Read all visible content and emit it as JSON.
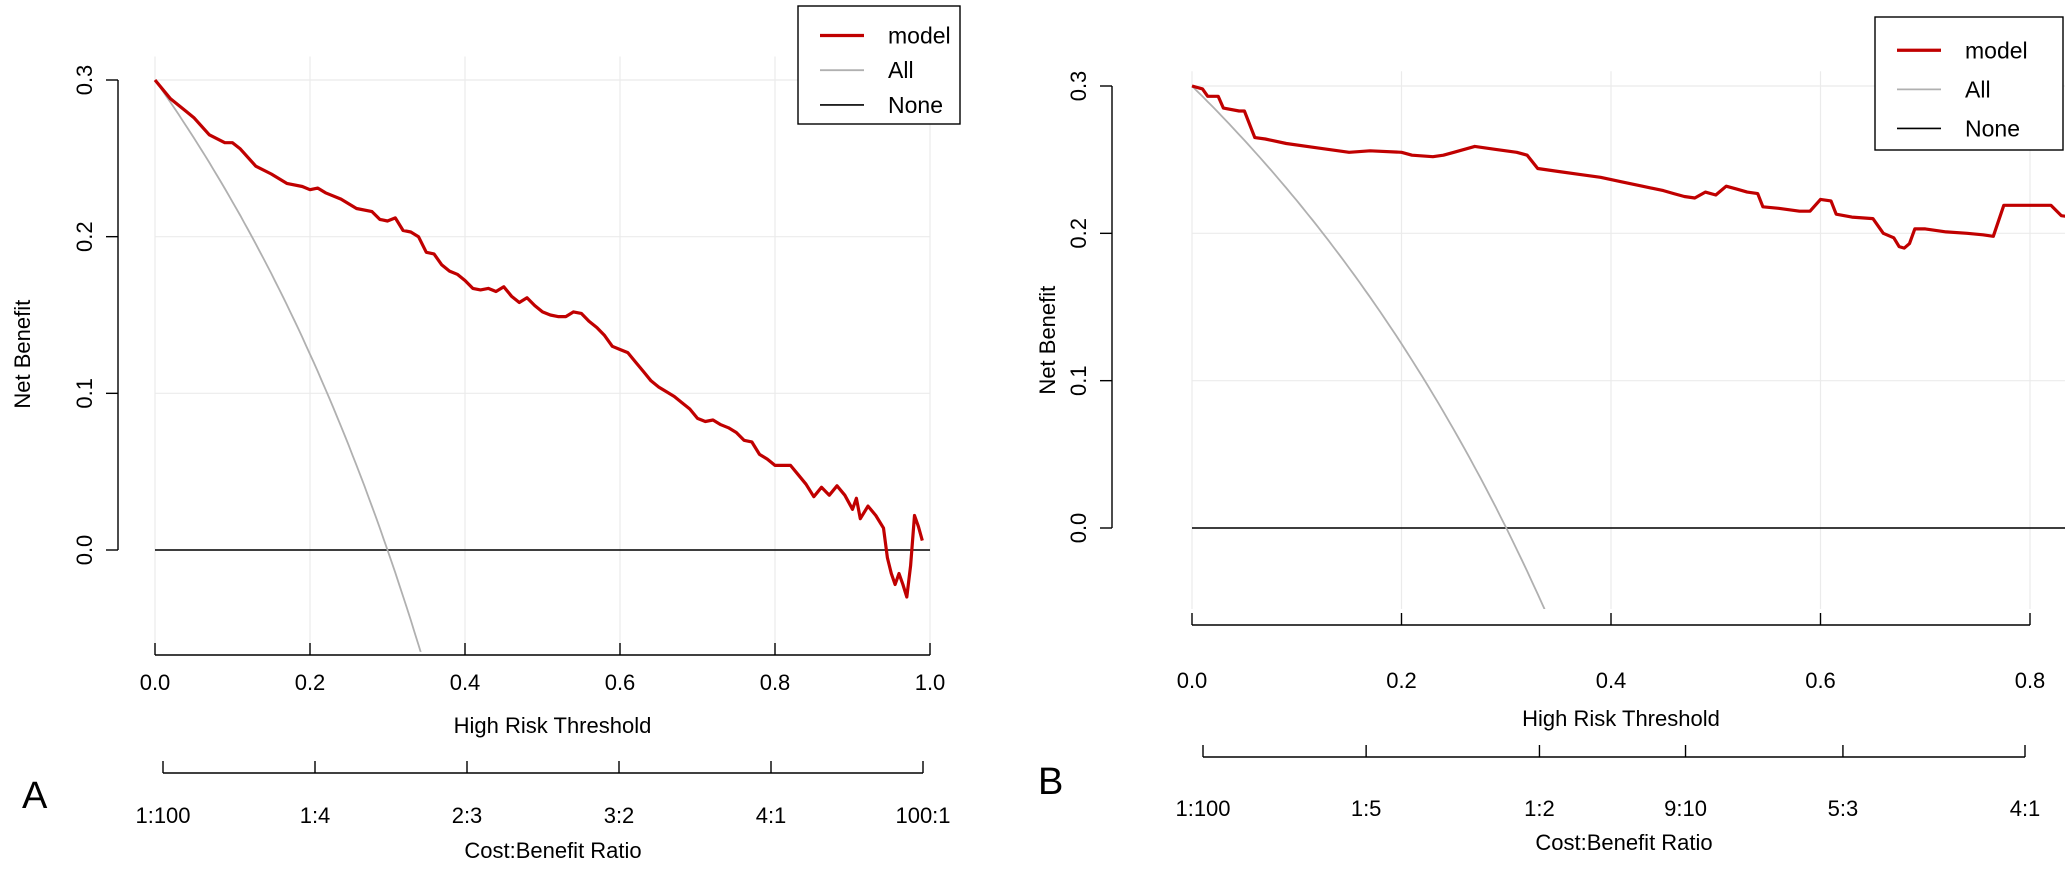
{
  "chart_data": [
    {
      "panel": "A",
      "type": "line",
      "xlabel": "High Risk Threshold",
      "ylabel": "Net Benefit",
      "xlim": [
        0,
        1.0
      ],
      "ylim": [
        -0.065,
        0.315
      ],
      "x_ticks": [
        "0.0",
        "0.2",
        "0.4",
        "0.6",
        "0.8",
        "1.0"
      ],
      "y_ticks": [
        "0.0",
        "0.1",
        "0.2",
        "0.3"
      ],
      "cost_benefit": {
        "label": "Cost:Benefit Ratio",
        "ticks": [
          "1:100",
          "1:4",
          "2:3",
          "3:2",
          "4:1",
          "100:1"
        ],
        "tick_positions": [
          0.0,
          0.2,
          0.4,
          0.6,
          0.8,
          1.0
        ]
      },
      "legend": [
        "model",
        "All",
        "None"
      ],
      "prevalence": 0.3,
      "colors": {
        "model": "#c00000",
        "all": "#b0b0b0",
        "none": "#000000"
      },
      "series": [
        {
          "name": "model",
          "points": [
            [
              0.0,
              0.3
            ],
            [
              0.02,
              0.288
            ],
            [
              0.04,
              0.28
            ],
            [
              0.05,
              0.276
            ],
            [
              0.07,
              0.265
            ],
            [
              0.09,
              0.26
            ],
            [
              0.1,
              0.26
            ],
            [
              0.11,
              0.256
            ],
            [
              0.13,
              0.245
            ],
            [
              0.15,
              0.24
            ],
            [
              0.17,
              0.234
            ],
            [
              0.19,
              0.232
            ],
            [
              0.2,
              0.23
            ],
            [
              0.21,
              0.231
            ],
            [
              0.22,
              0.228
            ],
            [
              0.24,
              0.224
            ],
            [
              0.26,
              0.218
            ],
            [
              0.28,
              0.216
            ],
            [
              0.29,
              0.211
            ],
            [
              0.3,
              0.21
            ],
            [
              0.31,
              0.212
            ],
            [
              0.32,
              0.204
            ],
            [
              0.33,
              0.203
            ],
            [
              0.34,
              0.2
            ],
            [
              0.35,
              0.19
            ],
            [
              0.36,
              0.189
            ],
            [
              0.37,
              0.182
            ],
            [
              0.38,
              0.178
            ],
            [
              0.39,
              0.176
            ],
            [
              0.4,
              0.172
            ],
            [
              0.41,
              0.167
            ],
            [
              0.42,
              0.166
            ],
            [
              0.43,
              0.167
            ],
            [
              0.44,
              0.165
            ],
            [
              0.45,
              0.168
            ],
            [
              0.46,
              0.162
            ],
            [
              0.47,
              0.158
            ],
            [
              0.48,
              0.161
            ],
            [
              0.49,
              0.156
            ],
            [
              0.5,
              0.152
            ],
            [
              0.51,
              0.15
            ],
            [
              0.52,
              0.149
            ],
            [
              0.53,
              0.149
            ],
            [
              0.54,
              0.152
            ],
            [
              0.55,
              0.151
            ],
            [
              0.56,
              0.146
            ],
            [
              0.57,
              0.142
            ],
            [
              0.58,
              0.137
            ],
            [
              0.59,
              0.13
            ],
            [
              0.6,
              0.128
            ],
            [
              0.61,
              0.126
            ],
            [
              0.62,
              0.12
            ],
            [
              0.63,
              0.114
            ],
            [
              0.64,
              0.108
            ],
            [
              0.65,
              0.104
            ],
            [
              0.66,
              0.101
            ],
            [
              0.67,
              0.098
            ],
            [
              0.68,
              0.094
            ],
            [
              0.69,
              0.09
            ],
            [
              0.7,
              0.084
            ],
            [
              0.71,
              0.082
            ],
            [
              0.72,
              0.083
            ],
            [
              0.73,
              0.08
            ],
            [
              0.74,
              0.078
            ],
            [
              0.75,
              0.075
            ],
            [
              0.76,
              0.07
            ],
            [
              0.77,
              0.069
            ],
            [
              0.78,
              0.061
            ],
            [
              0.79,
              0.058
            ],
            [
              0.8,
              0.054
            ],
            [
              0.81,
              0.054
            ],
            [
              0.82,
              0.054
            ],
            [
              0.83,
              0.048
            ],
            [
              0.84,
              0.042
            ],
            [
              0.85,
              0.034
            ],
            [
              0.86,
              0.04
            ],
            [
              0.87,
              0.035
            ],
            [
              0.88,
              0.041
            ],
            [
              0.89,
              0.035
            ],
            [
              0.9,
              0.026
            ],
            [
              0.905,
              0.033
            ],
            [
              0.91,
              0.02
            ],
            [
              0.92,
              0.028
            ],
            [
              0.93,
              0.022
            ],
            [
              0.94,
              0.014
            ],
            [
              0.945,
              -0.005
            ],
            [
              0.95,
              -0.015
            ],
            [
              0.955,
              -0.022
            ],
            [
              0.96,
              -0.015
            ],
            [
              0.965,
              -0.022
            ],
            [
              0.97,
              -0.03
            ],
            [
              0.975,
              -0.01
            ],
            [
              0.98,
              0.022
            ],
            [
              0.985,
              0.015
            ],
            [
              0.99,
              0.006
            ]
          ]
        },
        {
          "name": "All",
          "formula": "0.3 - 0.7*x/(1-x)",
          "x_range": [
            0,
            0.35
          ]
        },
        {
          "name": "None",
          "y": 0.0,
          "x_range": [
            0,
            1.0
          ]
        }
      ]
    },
    {
      "panel": "B",
      "type": "line",
      "xlabel": "High Risk Threshold",
      "ylabel": "Net Benefit",
      "xlim": [
        0,
        0.84
      ],
      "ylim": [
        -0.055,
        0.31
      ],
      "x_ticks": [
        "0.0",
        "0.2",
        "0.4",
        "0.6",
        "0.8"
      ],
      "y_ticks": [
        "0.0",
        "0.1",
        "0.2",
        "0.3"
      ],
      "cost_benefit": {
        "label": "Cost:Benefit Ratio",
        "ticks": [
          "1:100",
          "1:5",
          "1:2",
          "9:10",
          "5:3",
          "4:1"
        ],
        "tick_positions": [
          0.0099,
          0.1667,
          0.3333,
          0.4737,
          0.625,
          0.8
        ]
      },
      "legend": [
        "model",
        "All",
        "None"
      ],
      "prevalence": 0.3,
      "colors": {
        "model": "#c00000",
        "all": "#b0b0b0",
        "none": "#000000"
      },
      "series": [
        {
          "name": "model",
          "points": [
            [
              0.0,
              0.3
            ],
            [
              0.01,
              0.298
            ],
            [
              0.015,
              0.293
            ],
            [
              0.025,
              0.293
            ],
            [
              0.03,
              0.285
            ],
            [
              0.045,
              0.283
            ],
            [
              0.05,
              0.283
            ],
            [
              0.06,
              0.265
            ],
            [
              0.07,
              0.264
            ],
            [
              0.09,
              0.261
            ],
            [
              0.12,
              0.258
            ],
            [
              0.15,
              0.255
            ],
            [
              0.17,
              0.256
            ],
            [
              0.2,
              0.255
            ],
            [
              0.21,
              0.253
            ],
            [
              0.23,
              0.252
            ],
            [
              0.24,
              0.253
            ],
            [
              0.25,
              0.255
            ],
            [
              0.27,
              0.259
            ],
            [
              0.29,
              0.257
            ],
            [
              0.31,
              0.255
            ],
            [
              0.32,
              0.253
            ],
            [
              0.33,
              0.244
            ],
            [
              0.35,
              0.242
            ],
            [
              0.37,
              0.24
            ],
            [
              0.39,
              0.238
            ],
            [
              0.41,
              0.235
            ],
            [
              0.43,
              0.232
            ],
            [
              0.45,
              0.229
            ],
            [
              0.46,
              0.227
            ],
            [
              0.47,
              0.225
            ],
            [
              0.48,
              0.224
            ],
            [
              0.49,
              0.228
            ],
            [
              0.5,
              0.226
            ],
            [
              0.51,
              0.232
            ],
            [
              0.52,
              0.23
            ],
            [
              0.53,
              0.228
            ],
            [
              0.54,
              0.227
            ],
            [
              0.545,
              0.218
            ],
            [
              0.56,
              0.217
            ],
            [
              0.58,
              0.215
            ],
            [
              0.59,
              0.215
            ],
            [
              0.6,
              0.223
            ],
            [
              0.61,
              0.222
            ],
            [
              0.615,
              0.213
            ],
            [
              0.63,
              0.211
            ],
            [
              0.65,
              0.21
            ],
            [
              0.66,
              0.2
            ],
            [
              0.67,
              0.197
            ],
            [
              0.675,
              0.191
            ],
            [
              0.68,
              0.19
            ],
            [
              0.685,
              0.193
            ],
            [
              0.69,
              0.203
            ],
            [
              0.7,
              0.203
            ],
            [
              0.72,
              0.201
            ],
            [
              0.74,
              0.2
            ],
            [
              0.755,
              0.199
            ],
            [
              0.765,
              0.198
            ],
            [
              0.775,
              0.219
            ],
            [
              0.79,
              0.219
            ],
            [
              0.8,
              0.219
            ],
            [
              0.81,
              0.219
            ],
            [
              0.82,
              0.219
            ],
            [
              0.83,
              0.212
            ],
            [
              0.84,
              0.211
            ]
          ]
        },
        {
          "name": "All",
          "formula": "0.3 - 0.7*x/(1-x)",
          "x_range": [
            0,
            0.35
          ]
        },
        {
          "name": "None",
          "y": 0.0,
          "x_range": [
            0,
            0.84
          ]
        }
      ]
    }
  ]
}
